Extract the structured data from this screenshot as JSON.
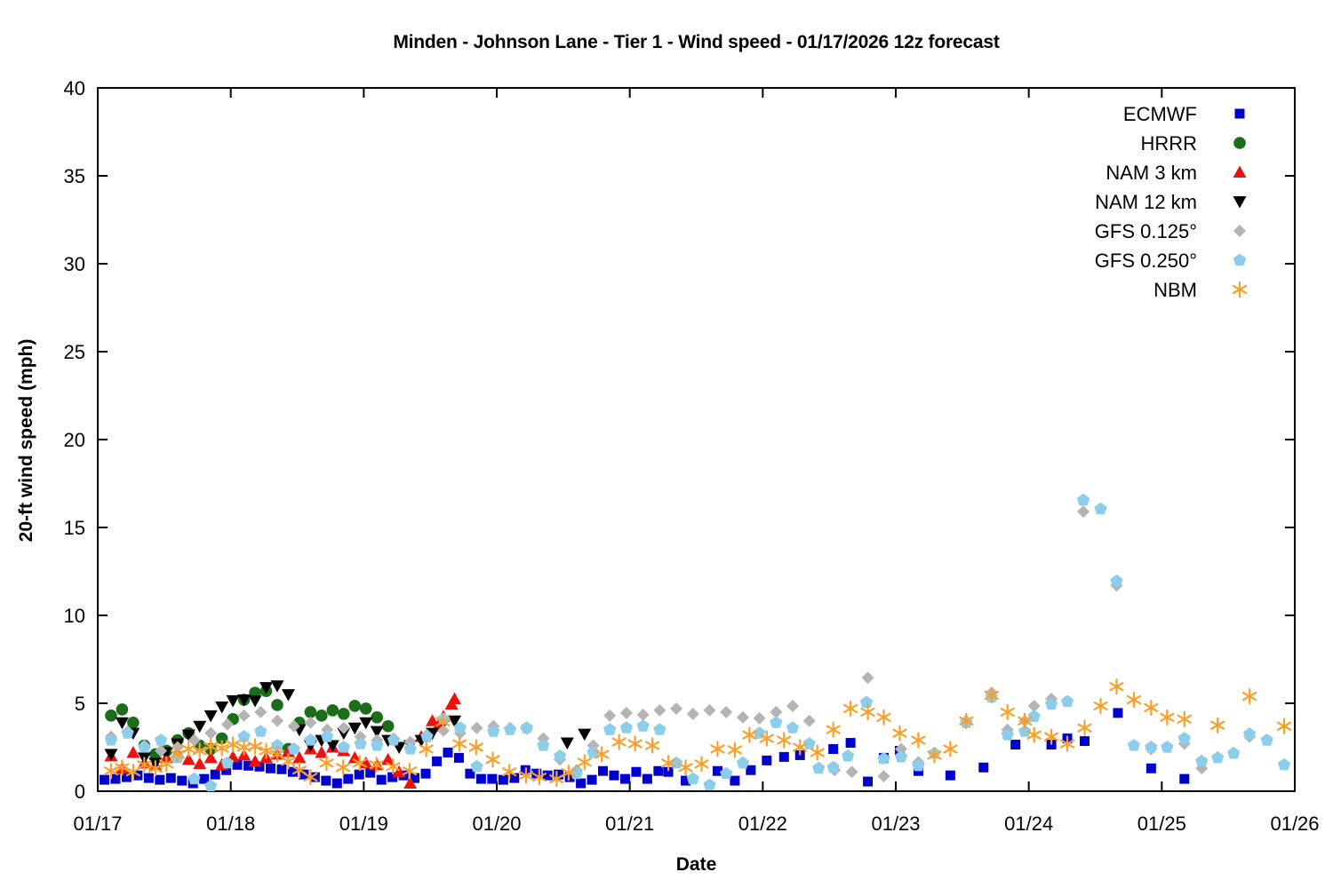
{
  "chart_data": {
    "type": "scatter",
    "title": "Minden - Johnson Lane - Tier 1 - Wind speed - 01/17/2026 12z forecast",
    "xlabel": "Date",
    "ylabel": "20-ft wind speed (mph)",
    "xlim": [
      0,
      9
    ],
    "ylim": [
      0,
      40
    ],
    "grid": false,
    "legend_position": "top-right-inside",
    "x_ticks": [
      {
        "t": 0,
        "label": "01/17"
      },
      {
        "t": 1,
        "label": "01/18"
      },
      {
        "t": 2,
        "label": "01/19"
      },
      {
        "t": 3,
        "label": "01/20"
      },
      {
        "t": 4,
        "label": "01/21"
      },
      {
        "t": 5,
        "label": "01/22"
      },
      {
        "t": 6,
        "label": "01/23"
      },
      {
        "t": 7,
        "label": "01/24"
      },
      {
        "t": 8,
        "label": "01/25"
      },
      {
        "t": 9,
        "label": "01/26"
      }
    ],
    "y_ticks": [
      0,
      5,
      10,
      15,
      20,
      25,
      30,
      35,
      40
    ],
    "time_unit": "days since 01/17 00:00",
    "series": [
      {
        "name": "ECMWF",
        "marker": "square",
        "color": "#0000cd",
        "segments": [
          {
            "t0": 0.05,
            "dt": 0.0833,
            "values": [
              0.65,
              0.7,
              0.8,
              0.9,
              0.75,
              0.65,
              0.75,
              0.6,
              0.45,
              0.7,
              0.95,
              1.2,
              1.5,
              1.45,
              1.4,
              1.3,
              1.25,
              1.1,
              0.95,
              0.8,
              0.6,
              0.45,
              0.7,
              0.95,
              1.05,
              0.65,
              0.8,
              0.9,
              0.75,
              1.0,
              1.7,
              2.2,
              1.9,
              1.0,
              0.7,
              0.7,
              0.65,
              0.75,
              1.2,
              1.0,
              0.9,
              0.95,
              0.8,
              0.45,
              0.65,
              1.15,
              0.9,
              0.7,
              1.1,
              0.7,
              1.15
            ]
          }
        ],
        "points": [
          [
            4.29,
            1.1
          ],
          [
            4.42,
            0.6
          ],
          [
            4.66,
            1.15
          ],
          [
            4.79,
            0.6
          ],
          [
            4.91,
            1.2
          ],
          [
            5.03,
            1.75
          ],
          [
            5.16,
            1.95
          ],
          [
            5.28,
            2.05
          ],
          [
            5.53,
            2.4
          ],
          [
            5.66,
            2.75
          ],
          [
            5.79,
            0.55
          ],
          [
            5.91,
            1.9
          ],
          [
            6.03,
            2.3
          ],
          [
            6.17,
            1.15
          ],
          [
            6.41,
            0.9
          ],
          [
            6.66,
            1.35
          ],
          [
            6.9,
            2.65
          ],
          [
            7.17,
            2.65
          ],
          [
            7.29,
            3.0
          ],
          [
            7.42,
            2.85
          ],
          [
            7.67,
            4.45
          ],
          [
            7.92,
            1.3
          ],
          [
            8.17,
            0.7
          ]
        ]
      },
      {
        "name": "HRRR",
        "marker": "circle",
        "color": "#1a6e1a",
        "segments": [
          {
            "t0": 0.1,
            "dt": 0.0833,
            "values": [
              4.3,
              4.65,
              3.9,
              2.6,
              2.1,
              2.3,
              2.9,
              3.3,
              2.6,
              2.4,
              3.0,
              4.1,
              5.2,
              5.6,
              5.7,
              4.9,
              2.4,
              3.9,
              4.5,
              4.3,
              4.6,
              4.4,
              4.85,
              4.7,
              4.2,
              3.7
            ]
          }
        ],
        "points": []
      },
      {
        "name": "NAM 3 km",
        "marker": "triangle-up",
        "color": "#ee1111",
        "segments": [
          {
            "t0": 0.1,
            "dt": 0.0833,
            "values": [
              2.0,
              1.3,
              2.2,
              1.6,
              1.5,
              1.9,
              2.2,
              1.8,
              1.55,
              1.9,
              1.5,
              1.95,
              2.05,
              1.7,
              1.9,
              2.1,
              2.25,
              1.9,
              2.4,
              2.2,
              2.5,
              2.3,
              1.9,
              1.6,
              1.5,
              1.8,
              1.1,
              0.45,
              3.1,
              4.0,
              4.25,
              5.25
            ]
          }
        ],
        "points": [
          [
            2.56,
            3.7
          ],
          [
            2.66,
            4.95
          ]
        ]
      },
      {
        "name": "NAM 12 km",
        "marker": "triangle-down",
        "color": "#000000",
        "segments": [
          {
            "t0": 0.1,
            "dt": 0.0833,
            "values": [
              2.1,
              3.9,
              3.3,
              1.9,
              1.6,
              2.2,
              2.7,
              3.2,
              3.7,
              4.3,
              4.8,
              5.15,
              5.2,
              5.15,
              5.9,
              6.0,
              5.5,
              3.5,
              2.6,
              2.9,
              2.6,
              3.3,
              3.6,
              3.9,
              3.4,
              2.9,
              2.5,
              2.6,
              2.9,
              3.3,
              3.9,
              4.0
            ]
          }
        ],
        "points": [
          [
            3.53,
            2.75
          ],
          [
            3.66,
            3.25
          ]
        ]
      },
      {
        "name": "GFS 0.125°",
        "marker": "diamond",
        "color": "#b4b4b4",
        "segments": [
          {
            "t0": 0.1,
            "dt": 0.125,
            "values": [
              3.1,
              3.4,
              2.6,
              2.3,
              2.5,
              2.9,
              3.3,
              3.8,
              4.3,
              4.5,
              4.0,
              3.7,
              3.9,
              3.5,
              3.6,
              3.1,
              2.9,
              3.0,
              2.8,
              3.2,
              3.45,
              3.3,
              3.6,
              3.7,
              3.6,
              3.55,
              3.0,
              1.8,
              1.2,
              2.6,
              4.3,
              4.45,
              4.35,
              4.6,
              4.7,
              4.4,
              4.6,
              4.5,
              4.2,
              4.15,
              4.5,
              4.85,
              4.0
            ]
          }
        ],
        "points": [
          [
            5.54,
            1.2
          ],
          [
            5.67,
            1.1
          ],
          [
            5.79,
            6.45
          ],
          [
            5.91,
            0.85
          ],
          [
            6.04,
            2.4
          ],
          [
            6.17,
            1.65
          ],
          [
            6.53,
            4.0
          ],
          [
            6.72,
            5.6
          ],
          [
            6.84,
            3.5
          ],
          [
            6.97,
            4.0
          ],
          [
            7.04,
            4.85
          ],
          [
            7.17,
            5.25
          ],
          [
            7.41,
            15.9
          ],
          [
            7.66,
            11.7
          ],
          [
            7.92,
            2.4
          ],
          [
            8.17,
            2.7
          ],
          [
            8.3,
            1.3
          ],
          [
            8.66,
            3.1
          ]
        ]
      },
      {
        "name": "GFS 0.250°",
        "marker": "pentagon",
        "color": "#8bcdea",
        "segments": [
          {
            "t0": 0.1,
            "dt": 0.125,
            "values": [
              2.9,
              3.3,
              2.5,
              2.9,
              1.9,
              0.7,
              0.3,
              1.6,
              3.1,
              3.4,
              2.6,
              2.4,
              2.9,
              3.1,
              2.5,
              2.7,
              2.6,
              2.9,
              2.4,
              3.1,
              4.1,
              3.6,
              1.4,
              3.4,
              3.5,
              3.6,
              2.6,
              2.0,
              1.0,
              2.2,
              3.5,
              3.6,
              3.7,
              3.5,
              1.6,
              0.7,
              0.35,
              1.0,
              1.6,
              3.3,
              3.9,
              3.6,
              2.7
            ]
          }
        ],
        "points": [
          [
            5.42,
            1.3
          ],
          [
            5.53,
            1.35
          ],
          [
            5.64,
            2.0
          ],
          [
            5.78,
            5.05
          ],
          [
            5.91,
            1.85
          ],
          [
            6.04,
            1.95
          ],
          [
            6.17,
            1.45
          ],
          [
            6.29,
            2.15
          ],
          [
            6.53,
            3.9
          ],
          [
            6.72,
            5.35
          ],
          [
            6.84,
            3.2
          ],
          [
            6.97,
            3.4
          ],
          [
            7.04,
            4.25
          ],
          [
            7.17,
            4.95
          ],
          [
            7.29,
            5.1
          ],
          [
            7.41,
            16.55
          ],
          [
            7.54,
            16.05
          ],
          [
            7.66,
            11.95
          ],
          [
            7.79,
            2.6
          ],
          [
            7.92,
            2.5
          ],
          [
            8.04,
            2.5
          ],
          [
            8.17,
            3.0
          ],
          [
            8.3,
            1.7
          ],
          [
            8.42,
            1.9
          ],
          [
            8.54,
            2.15
          ],
          [
            8.66,
            3.25
          ],
          [
            8.79,
            2.9
          ],
          [
            8.92,
            1.5
          ]
        ]
      },
      {
        "name": "NBM",
        "marker": "asterisk",
        "color": "#f9a02a",
        "segments": [
          {
            "t0": 0.1,
            "dt": 0.0833,
            "values": [
              1.15,
              1.35,
              1.1,
              1.5,
              1.3,
              1.55,
              2.1,
              2.4,
              2.3,
              2.55,
              2.45,
              2.65,
              2.5,
              2.55,
              2.3,
              2.1,
              1.7,
              1.2,
              0.8
            ]
          },
          {
            "t0": 1.72,
            "dt": 0.125,
            "values": [
              1.6,
              1.35,
              1.6,
              1.5,
              1.4,
              1.15,
              2.4,
              3.95,
              2.7,
              2.5,
              1.8,
              1.1,
              0.9
            ]
          }
        ],
        "points": [
          [
            3.32,
            0.8
          ],
          [
            3.45,
            0.7
          ],
          [
            3.54,
            1.05
          ],
          [
            3.66,
            1.65
          ],
          [
            3.79,
            2.1
          ],
          [
            3.92,
            2.8
          ],
          [
            4.04,
            2.7
          ],
          [
            4.17,
            2.6
          ],
          [
            4.29,
            1.6
          ],
          [
            4.42,
            1.35
          ],
          [
            4.54,
            1.55
          ],
          [
            4.66,
            2.4
          ],
          [
            4.79,
            2.35
          ],
          [
            4.9,
            3.2
          ],
          [
            5.03,
            3.0
          ],
          [
            5.16,
            2.9
          ],
          [
            5.28,
            2.5
          ],
          [
            5.41,
            2.2
          ],
          [
            5.53,
            3.5
          ],
          [
            5.66,
            4.7
          ],
          [
            5.79,
            4.5
          ],
          [
            5.91,
            4.2
          ],
          [
            6.03,
            3.3
          ],
          [
            6.17,
            2.9
          ],
          [
            6.29,
            2.05
          ],
          [
            6.41,
            2.4
          ],
          [
            6.53,
            4.0
          ],
          [
            6.72,
            5.45
          ],
          [
            6.84,
            4.5
          ],
          [
            6.97,
            4.0
          ],
          [
            7.04,
            3.2
          ],
          [
            7.17,
            3.1
          ],
          [
            7.29,
            2.7
          ],
          [
            7.42,
            3.6
          ],
          [
            7.54,
            4.85
          ],
          [
            7.66,
            5.95
          ],
          [
            7.79,
            5.2
          ],
          [
            7.92,
            4.75
          ],
          [
            8.04,
            4.2
          ],
          [
            8.17,
            4.1
          ],
          [
            8.42,
            3.75
          ],
          [
            8.66,
            5.4
          ],
          [
            8.92,
            3.7
          ]
        ]
      }
    ]
  }
}
